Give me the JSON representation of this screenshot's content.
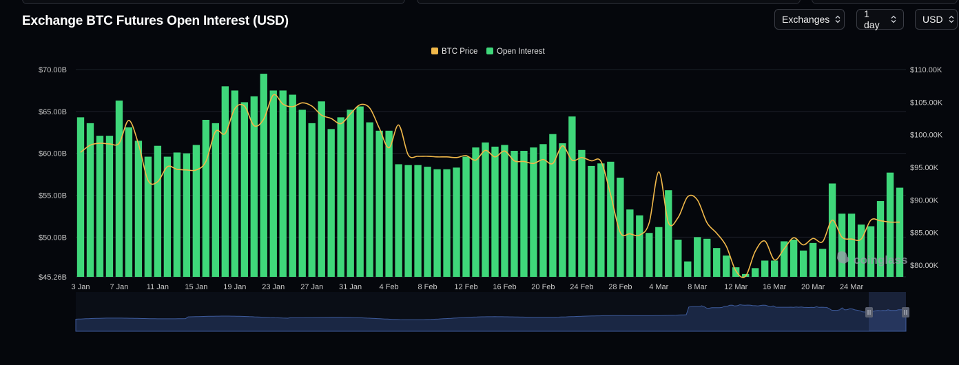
{
  "header": {
    "title": "Exchange BTC Futures Open Interest (USD)",
    "controls": [
      {
        "label": "Exchanges",
        "name": "exchanges-select"
      },
      {
        "label": "1 day",
        "name": "interval-select"
      },
      {
        "label": "USD",
        "name": "currency-select"
      }
    ]
  },
  "watermark": "coinglass",
  "colors": {
    "background": "#05070c",
    "open_interest": "#3fd77a",
    "btc_price": "#f0b84a",
    "grid": "#1c2028",
    "navigator_fill": "#1a2744",
    "navigator_line": "#3d5a9a"
  },
  "chart_data": {
    "type": "bar",
    "title": "Exchange BTC Futures Open Interest (USD)",
    "legend": {
      "position": "top-center",
      "items": [
        "BTC Price",
        "Open Interest"
      ]
    },
    "grid": true,
    "x_ticks": [
      "3 Jan",
      "7 Jan",
      "11 Jan",
      "15 Jan",
      "19 Jan",
      "23 Jan",
      "27 Jan",
      "31 Jan",
      "4 Feb",
      "8 Feb",
      "12 Feb",
      "16 Feb",
      "20 Feb",
      "24 Feb",
      "28 Feb",
      "4 Mar",
      "8 Mar",
      "12 Mar",
      "16 Mar",
      "20 Mar",
      "24 Mar"
    ],
    "y_left": {
      "ticks": [
        "$70.00B",
        "$65.00B",
        "$60.00B",
        "$55.00B",
        "$50.00B",
        "$45.26B"
      ],
      "tick_values": [
        70,
        65,
        60,
        55,
        50,
        45.26
      ],
      "range": [
        45.26,
        70
      ],
      "unit": "B USD"
    },
    "y_right": {
      "ticks": [
        "$110.00K",
        "$105.00K",
        "$100.00K",
        "$95.00K",
        "$90.00K",
        "$85.00K",
        "$80.00K"
      ],
      "tick_values": [
        110,
        105,
        100,
        95,
        90,
        85,
        80
      ],
      "range": [
        78.2,
        110
      ],
      "unit": "K USD"
    },
    "series": [
      {
        "name": "Open Interest",
        "type": "bar",
        "axis": "left",
        "values": [
          64.3,
          63.6,
          62.1,
          62.1,
          66.3,
          63.1,
          61.5,
          59.6,
          60.9,
          59.6,
          60.1,
          60.0,
          61.0,
          64.0,
          63.6,
          68.0,
          67.5,
          66.1,
          66.8,
          69.5,
          67.5,
          67.5,
          67.0,
          65.2,
          63.6,
          66.2,
          62.9,
          64.3,
          65.2,
          65.6,
          63.7,
          62.7,
          62.7,
          58.7,
          58.6,
          58.6,
          58.4,
          58.1,
          58.1,
          58.3,
          59.6,
          60.7,
          61.3,
          60.8,
          61.0,
          60.3,
          60.3,
          60.7,
          61.1,
          62.3,
          61.2,
          64.4,
          60.4,
          58.5,
          58.8,
          59.0,
          57.1,
          53.3,
          52.6,
          50.5,
          51.2,
          55.6,
          49.7,
          47.1,
          50.0,
          49.8,
          48.7,
          47.8,
          46.4,
          45.6,
          46.3,
          47.2,
          47.2,
          49.5,
          49.7,
          48.4,
          49.3,
          48.6,
          56.4,
          52.8,
          52.8,
          51.5,
          51.3,
          54.3,
          57.7,
          55.9
        ]
      },
      {
        "name": "BTC Price",
        "type": "line",
        "axis": "right",
        "values": [
          97.3,
          98.4,
          98.7,
          98.6,
          98.7,
          102.2,
          98.6,
          93.0,
          92.8,
          95.1,
          94.7,
          94.6,
          94.6,
          95.9,
          100.5,
          100.2,
          104.0,
          104.4,
          101.4,
          102.4,
          106.1,
          104.7,
          104.3,
          104.9,
          104.4,
          103.0,
          102.5,
          101.7,
          103.2,
          104.6,
          104.1,
          101.0,
          98.0,
          101.5,
          96.9,
          96.7,
          96.7,
          96.6,
          96.6,
          96.5,
          96.8,
          96.1,
          97.6,
          96.6,
          97.5,
          96.0,
          95.9,
          95.6,
          96.2,
          95.6,
          98.3,
          96.1,
          96.5,
          96.0,
          95.9,
          90.8,
          85.0,
          84.8,
          84.6,
          86.5,
          94.3,
          86.5,
          87.3,
          90.5,
          90.0,
          86.5,
          84.9,
          82.9,
          79.1,
          78.3,
          82.1,
          83.7,
          80.8,
          82.5,
          84.2,
          83.1,
          84.1,
          83.6,
          86.9,
          84.3,
          84.0,
          84.0,
          86.9,
          86.8,
          86.6,
          86.6
        ]
      }
    ],
    "navigator": {
      "shown": true,
      "selected_range": "last ~4% of history"
    }
  }
}
